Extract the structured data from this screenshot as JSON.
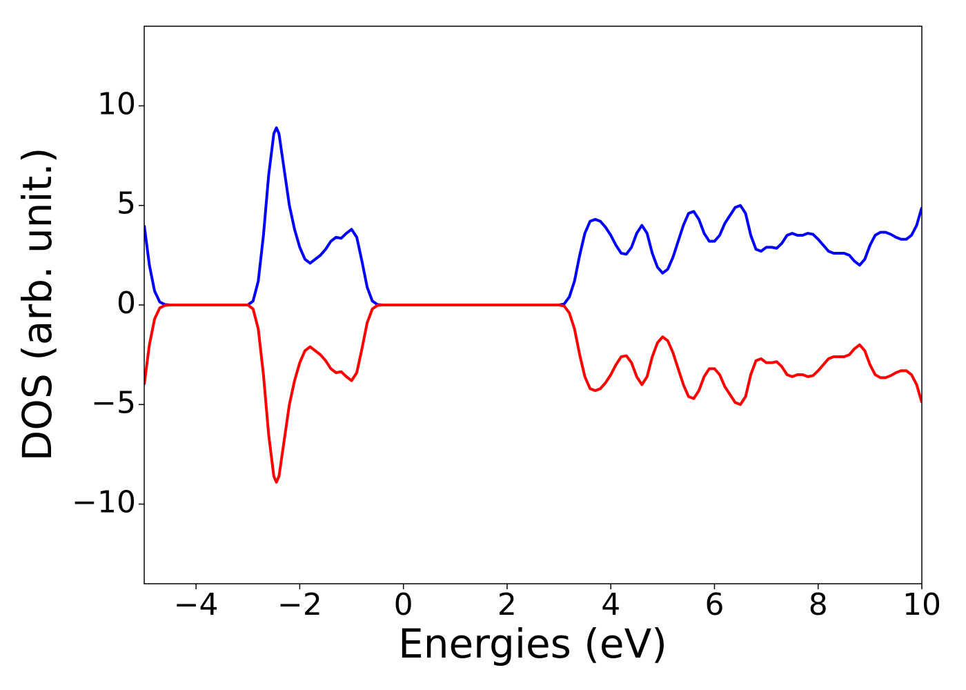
{
  "chart_data": {
    "type": "line",
    "x_label": "Energies (eV)",
    "y_label": "DOS (arb. unit.)",
    "x": [
      -5.0,
      -4.9,
      -4.8,
      -4.7,
      -4.6,
      -4.5,
      -3.0,
      -2.9,
      -2.8,
      -2.7,
      -2.6,
      -2.5,
      -2.45,
      -2.4,
      -2.3,
      -2.2,
      -2.1,
      -2.0,
      -1.9,
      -1.8,
      -1.7,
      -1.6,
      -1.5,
      -1.4,
      -1.3,
      -1.2,
      -1.1,
      -1.0,
      -0.9,
      -0.8,
      -0.7,
      -0.6,
      -0.5,
      -0.4,
      3.0,
      3.1,
      3.2,
      3.3,
      3.4,
      3.5,
      3.6,
      3.7,
      3.8,
      3.9,
      4.0,
      4.1,
      4.2,
      4.3,
      4.4,
      4.5,
      4.6,
      4.7,
      4.8,
      4.9,
      5.0,
      5.1,
      5.2,
      5.3,
      5.4,
      5.5,
      5.6,
      5.7,
      5.8,
      5.9,
      6.0,
      6.1,
      6.2,
      6.3,
      6.4,
      6.5,
      6.6,
      6.7,
      6.8,
      6.9,
      7.0,
      7.1,
      7.2,
      7.3,
      7.4,
      7.5,
      7.6,
      7.7,
      7.8,
      7.9,
      8.0,
      8.1,
      8.2,
      8.3,
      8.4,
      8.5,
      8.6,
      8.7,
      8.8,
      8.9,
      9.0,
      9.1,
      9.2,
      9.3,
      9.4,
      9.5,
      9.6,
      9.7,
      9.8,
      9.9,
      10.0
    ],
    "series": [
      {
        "color": "#0000ff",
        "values": [
          4.0,
          2.0,
          0.7,
          0.15,
          0.02,
          0,
          0,
          0.2,
          1.2,
          3.5,
          6.5,
          8.6,
          8.9,
          8.6,
          6.8,
          5.0,
          3.8,
          2.9,
          2.3,
          2.1,
          2.3,
          2.5,
          2.8,
          3.2,
          3.4,
          3.35,
          3.6,
          3.8,
          3.4,
          2.2,
          0.9,
          0.2,
          0.02,
          0,
          0,
          0.05,
          0.4,
          1.2,
          2.5,
          3.6,
          4.2,
          4.3,
          4.2,
          3.9,
          3.5,
          3.0,
          2.6,
          2.55,
          2.9,
          3.6,
          4.0,
          3.6,
          2.6,
          1.9,
          1.6,
          1.8,
          2.4,
          3.2,
          4.0,
          4.6,
          4.7,
          4.3,
          3.6,
          3.2,
          3.2,
          3.5,
          4.1,
          4.5,
          4.9,
          5.0,
          4.6,
          3.5,
          2.8,
          2.7,
          2.9,
          2.9,
          2.85,
          3.1,
          3.5,
          3.6,
          3.5,
          3.5,
          3.6,
          3.55,
          3.3,
          3.0,
          2.7,
          2.6,
          2.6,
          2.6,
          2.5,
          2.2,
          2.0,
          2.3,
          3.0,
          3.5,
          3.65,
          3.65,
          3.55,
          3.4,
          3.3,
          3.3,
          3.5,
          4.0,
          4.9
        ]
      },
      {
        "color": "#ff0000",
        "values": [
          -4.0,
          -2.0,
          -0.7,
          -0.15,
          -0.02,
          0,
          0,
          -0.2,
          -1.2,
          -3.5,
          -6.5,
          -8.6,
          -8.9,
          -8.6,
          -6.8,
          -5.0,
          -3.8,
          -2.9,
          -2.3,
          -2.1,
          -2.3,
          -2.5,
          -2.8,
          -3.2,
          -3.4,
          -3.35,
          -3.6,
          -3.8,
          -3.4,
          -2.2,
          -0.9,
          -0.2,
          -0.02,
          0,
          0,
          -0.05,
          -0.4,
          -1.2,
          -2.5,
          -3.6,
          -4.2,
          -4.3,
          -4.2,
          -3.9,
          -3.5,
          -3.0,
          -2.6,
          -2.55,
          -2.9,
          -3.6,
          -4.0,
          -3.6,
          -2.6,
          -1.9,
          -1.6,
          -1.8,
          -2.4,
          -3.2,
          -4.0,
          -4.6,
          -4.7,
          -4.3,
          -3.6,
          -3.2,
          -3.2,
          -3.5,
          -4.1,
          -4.5,
          -4.9,
          -5.0,
          -4.6,
          -3.5,
          -2.8,
          -2.7,
          -2.9,
          -2.9,
          -2.85,
          -3.1,
          -3.5,
          -3.6,
          -3.5,
          -3.5,
          -3.6,
          -3.55,
          -3.3,
          -3.0,
          -2.7,
          -2.6,
          -2.6,
          -2.6,
          -2.5,
          -2.2,
          -2.0,
          -2.3,
          -3.0,
          -3.5,
          -3.65,
          -3.65,
          -3.55,
          -3.4,
          -3.3,
          -3.3,
          -3.5,
          -4.0,
          -4.9
        ]
      }
    ],
    "xlim": [
      -5,
      10
    ],
    "xticks": [
      {
        "value": -4,
        "label": "−4"
      },
      {
        "value": -2,
        "label": "−2"
      },
      0,
      2,
      4,
      6,
      8,
      10
    ],
    "ylim": [
      -14,
      14
    ],
    "yticks": [
      {
        "value": -10,
        "label": "−10"
      },
      {
        "value": -5,
        "label": "−5"
      },
      0,
      5,
      10
    ],
    "grid": false
  }
}
